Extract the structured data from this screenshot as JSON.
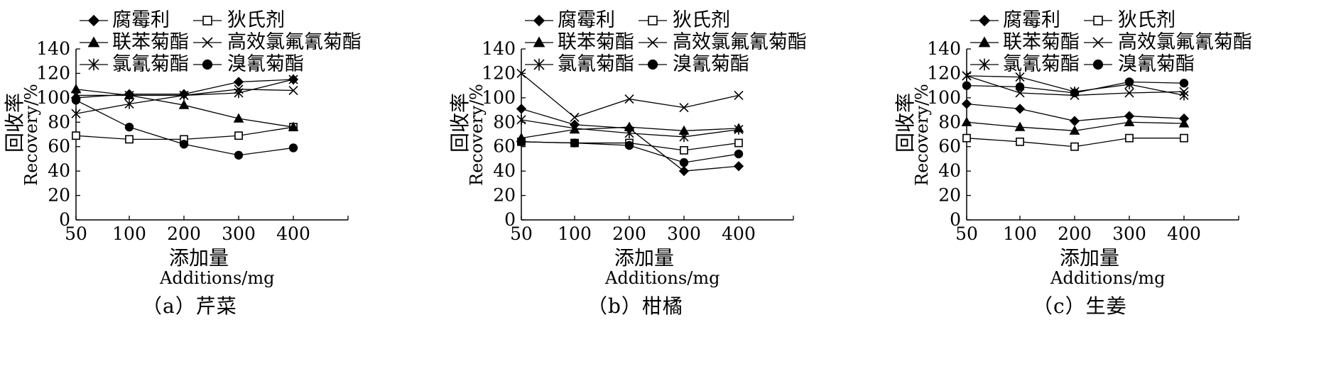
{
  "series_legend": [
    "腐霉利",
    "狄氏剂",
    "联苯菊酯",
    "高效氯氟氰菊酯",
    "氯氰菊酯",
    "溴氰菊酯"
  ],
  "markers": [
    "diamond",
    "open-square",
    "triangle",
    "x-cross",
    "star",
    "circle"
  ],
  "ylabel_cn": "回收率",
  "ylabel_en": "Recovery/%",
  "xlabel_cn": "添加量",
  "xlabel_en": "Additions/mg",
  "chart_data": [
    {
      "type": "line",
      "caption": "（a）芹菜",
      "x": [
        "50",
        "100",
        "200",
        "300",
        "400"
      ],
      "yticks": [
        "0",
        "20",
        "40",
        "60",
        "80",
        "100",
        "120",
        "140"
      ],
      "ylim": [
        0,
        140
      ],
      "series": [
        {
          "name": "腐霉利",
          "values": [
            100,
            103,
            103,
            113,
            115
          ]
        },
        {
          "name": "狄氏剂",
          "values": [
            69,
            66,
            66,
            69,
            76
          ]
        },
        {
          "name": "联苯菊酯",
          "values": [
            107,
            102,
            94,
            83,
            76
          ]
        },
        {
          "name": "高效氯氟氰菊酯",
          "values": [
            102,
            102,
            102,
            107,
            106
          ]
        },
        {
          "name": "氯氰菊酯",
          "values": [
            87,
            95,
            102,
            104,
            115
          ]
        },
        {
          "name": "溴氰菊酯",
          "values": [
            98,
            76,
            62,
            53,
            59
          ]
        }
      ]
    },
    {
      "type": "line",
      "caption": "（b）柑橘",
      "x": [
        "50",
        "100",
        "200",
        "300",
        "400"
      ],
      "yticks": [
        "0",
        "20",
        "40",
        "60",
        "80",
        "100",
        "120",
        "140"
      ],
      "ylim": [
        0,
        140
      ],
      "series": [
        {
          "name": "腐霉利",
          "values": [
            91,
            78,
            75,
            40,
            44
          ]
        },
        {
          "name": "狄氏剂",
          "values": [
            64,
            63,
            63,
            57,
            63
          ]
        },
        {
          "name": "联苯菊酯",
          "values": [
            67,
            74,
            76,
            73,
            75
          ]
        },
        {
          "name": "高效氯氟氰菊酯",
          "values": [
            120,
            84,
            99,
            92,
            102
          ]
        },
        {
          "name": "氯氰菊酯",
          "values": [
            82,
            75,
            71,
            68,
            74
          ]
        },
        {
          "name": "溴氰菊酯",
          "values": [
            64,
            63,
            61,
            47,
            54
          ]
        }
      ]
    },
    {
      "type": "line",
      "caption": "（c）生姜",
      "x": [
        "50",
        "100",
        "200",
        "300",
        "400"
      ],
      "yticks": [
        "0",
        "20",
        "40",
        "60",
        "80",
        "100",
        "120",
        "140"
      ],
      "ylim": [
        0,
        140
      ],
      "series": [
        {
          "name": "腐霉利",
          "values": [
            95,
            91,
            81,
            85,
            83
          ]
        },
        {
          "name": "狄氏剂",
          "values": [
            67,
            64,
            60,
            67,
            67
          ]
        },
        {
          "name": "联苯菊酯",
          "values": [
            80,
            76,
            73,
            80,
            79
          ]
        },
        {
          "name": "高效氯氟氰菊酯",
          "values": [
            118,
            104,
            102,
            104,
            105
          ]
        },
        {
          "name": "氯氰菊酯",
          "values": [
            118,
            117,
            105,
            111,
            102
          ]
        },
        {
          "name": "溴氰菊酯",
          "values": [
            110,
            109,
            104,
            113,
            112
          ]
        }
      ]
    }
  ]
}
